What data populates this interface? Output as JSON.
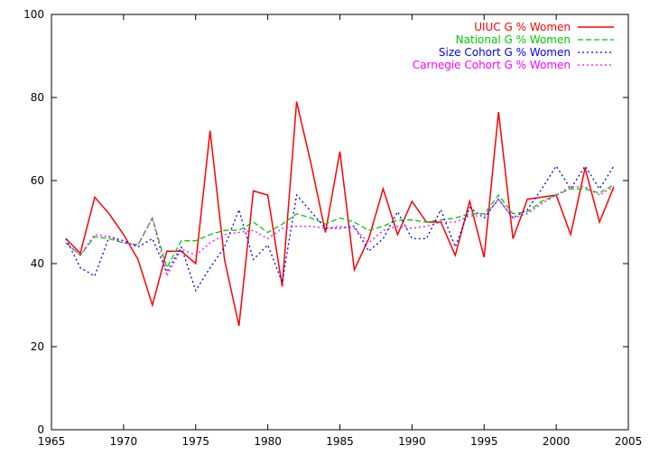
{
  "chart_data": {
    "type": "line",
    "title": "",
    "xlabel": "",
    "ylabel": "",
    "xlim": [
      1965,
      2005
    ],
    "ylim": [
      0,
      100
    ],
    "x_ticks": [
      1965,
      1970,
      1975,
      1980,
      1985,
      1990,
      1995,
      2000,
      2005
    ],
    "y_ticks": [
      0,
      20,
      40,
      60,
      80,
      100
    ],
    "grid": false,
    "legend_position": "top-right",
    "x": [
      1966,
      1967,
      1968,
      1969,
      1970,
      1971,
      1972,
      1973,
      1974,
      1975,
      1976,
      1977,
      1978,
      1979,
      1980,
      1981,
      1982,
      1983,
      1984,
      1985,
      1986,
      1987,
      1988,
      1989,
      1990,
      1991,
      1992,
      1993,
      1994,
      1995,
      1996,
      1997,
      1998,
      1999,
      2000,
      2001,
      2002,
      2003,
      2004
    ],
    "series": [
      {
        "name": "UIUC G % Women",
        "color": "#ff0000",
        "dash": "solid",
        "values": [
          46,
          42.5,
          56,
          52,
          47,
          41,
          30,
          43,
          43,
          40,
          72,
          41,
          25,
          57.5,
          56.5,
          34.5,
          79,
          64,
          47.5,
          67,
          38.5,
          46,
          58,
          47,
          55,
          50,
          50,
          42,
          55,
          41.5,
          76.5,
          46,
          55.5,
          56,
          56.5,
          47,
          63,
          50,
          58.5
        ]
      },
      {
        "name": "National G % Women",
        "color": "#00cc00",
        "dash": "dashed",
        "values": [
          45,
          42,
          46.5,
          46,
          45,
          44.5,
          51,
          39,
          45.5,
          45.5,
          47,
          48,
          48,
          50,
          47.5,
          49.5,
          52,
          51,
          49.5,
          51,
          50,
          48,
          49,
          50.5,
          50.5,
          50,
          50.5,
          51,
          52,
          52,
          56.5,
          52,
          52.5,
          55,
          56.5,
          58,
          58,
          57,
          59
        ]
      },
      {
        "name": "Size Cohort G % Women",
        "color": "#0000ff",
        "dash": "dotted",
        "values": [
          46,
          39,
          37,
          46.5,
          45.5,
          44,
          46,
          38,
          44,
          33.5,
          39,
          44,
          53,
          41,
          44.5,
          35.5,
          56.5,
          52.5,
          48.5,
          48.5,
          49,
          43,
          46,
          52.5,
          46,
          46,
          53,
          44,
          53.5,
          51,
          55.5,
          51,
          53,
          58,
          63.5,
          58,
          63.5,
          58,
          63.5
        ]
      },
      {
        "name": "Carnegie Cohort G % Women",
        "color": "#ff00ff",
        "dash": "dotted",
        "values": [
          45,
          42,
          47,
          46.5,
          45,
          44.5,
          51,
          37,
          43.5,
          42,
          45,
          47,
          47.5,
          48,
          46,
          48.5,
          49,
          49,
          48.5,
          49,
          48.5,
          45,
          48,
          49,
          48.5,
          49,
          50,
          50,
          51.5,
          51.5,
          55.5,
          51,
          52,
          54.5,
          56.5,
          58.5,
          58.5,
          56.5,
          58.5
        ]
      }
    ]
  }
}
